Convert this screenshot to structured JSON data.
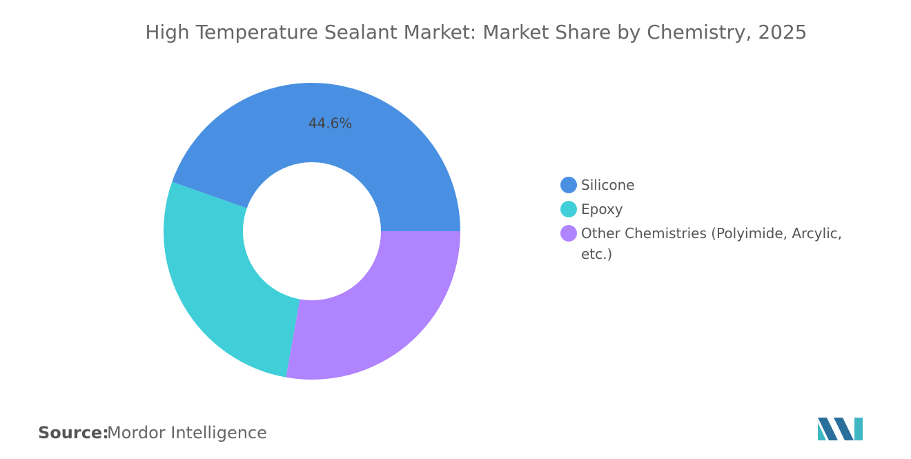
{
  "chart_data": {
    "type": "donut",
    "title": "High Temperature Sealant Market: Market Share by Chemistry, 2025",
    "categories": [
      "Silicone",
      "Epoxy",
      "Other Chemistries (Polyimide, Arcylic, etc.)"
    ],
    "values": [
      44.6,
      27.6,
      27.8
    ],
    "value_labels": [
      "44.6%",
      null,
      null
    ],
    "colors": [
      "#4a90e2",
      "#40cfd9",
      "#b084ff"
    ],
    "source_label": "Source:",
    "source": "Mordor Intelligence"
  }
}
